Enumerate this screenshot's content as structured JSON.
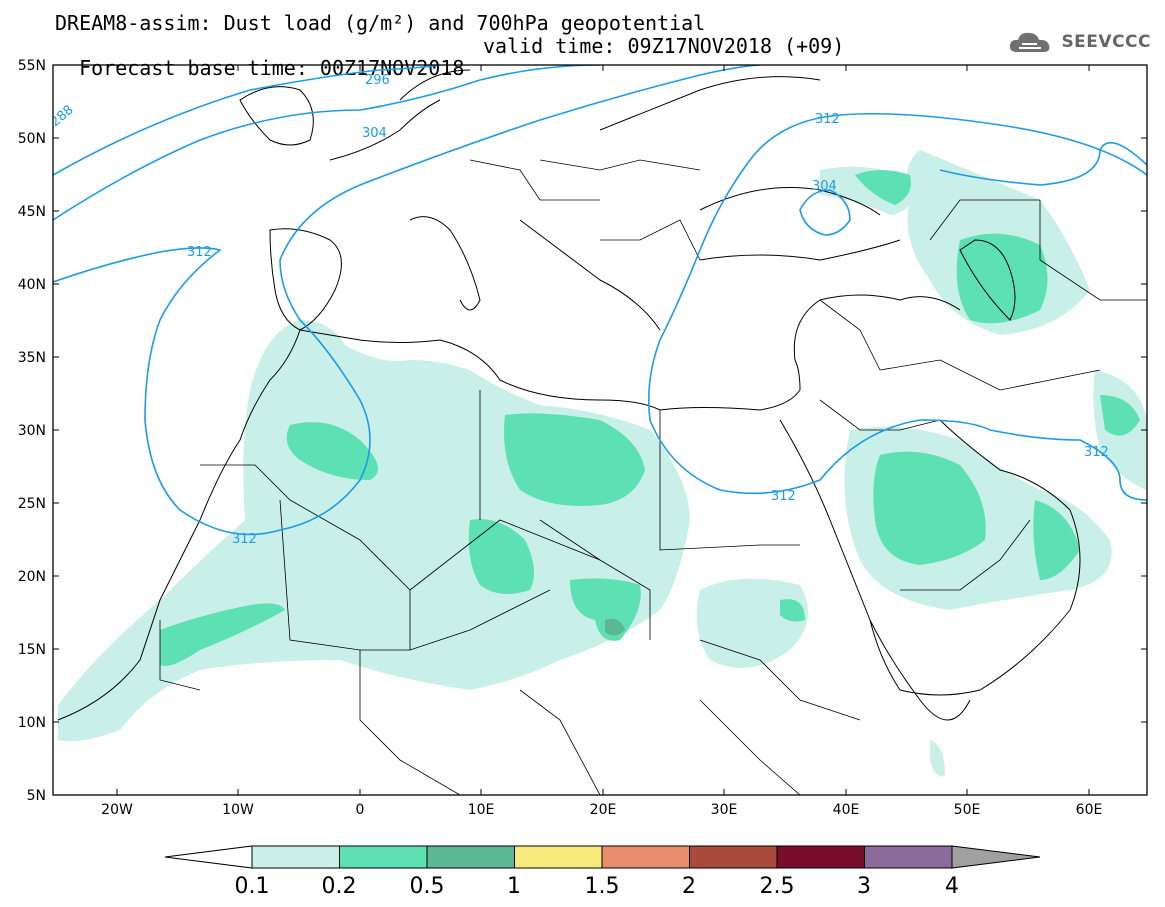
{
  "title": {
    "line1": "DREAM8-assim: Dust load (g/m²) and 700hPa geopotential",
    "line2_base": "Forecast base time: 00Z17NOV2018",
    "line2_valid": "valid time: 09Z17NOV2018 (+09)"
  },
  "logo": {
    "text": "SEEVCCC",
    "icon": "cloud-icon"
  },
  "axes": {
    "lat_labels": [
      "55N",
      "50N",
      "45N",
      "40N",
      "35N",
      "30N",
      "25N",
      "20N",
      "15N",
      "10N",
      "5N"
    ],
    "lon_labels": [
      "20W",
      "10W",
      "0",
      "10E",
      "20E",
      "30E",
      "40E",
      "50E",
      "60E"
    ]
  },
  "contour_labels": [
    "296",
    "304",
    "312",
    "312",
    "312",
    "312",
    "304",
    "312",
    "288"
  ],
  "colorbar": {
    "labels": [
      "0.1",
      "0.2",
      "0.5",
      "1",
      "1.5",
      "2",
      "2.5",
      "3",
      "4"
    ],
    "colors": [
      "#c8f0e8",
      "#5de0b4",
      "#5cb894",
      "#f6ea7c",
      "#e98d6c",
      "#a94a3c",
      "#7a0c2c",
      "#8c6a9c"
    ],
    "under_color": "#ffffff",
    "over_color": "#a0a0a0"
  },
  "colors": {
    "contour": "#1e9be6",
    "boundary": "#000000"
  }
}
